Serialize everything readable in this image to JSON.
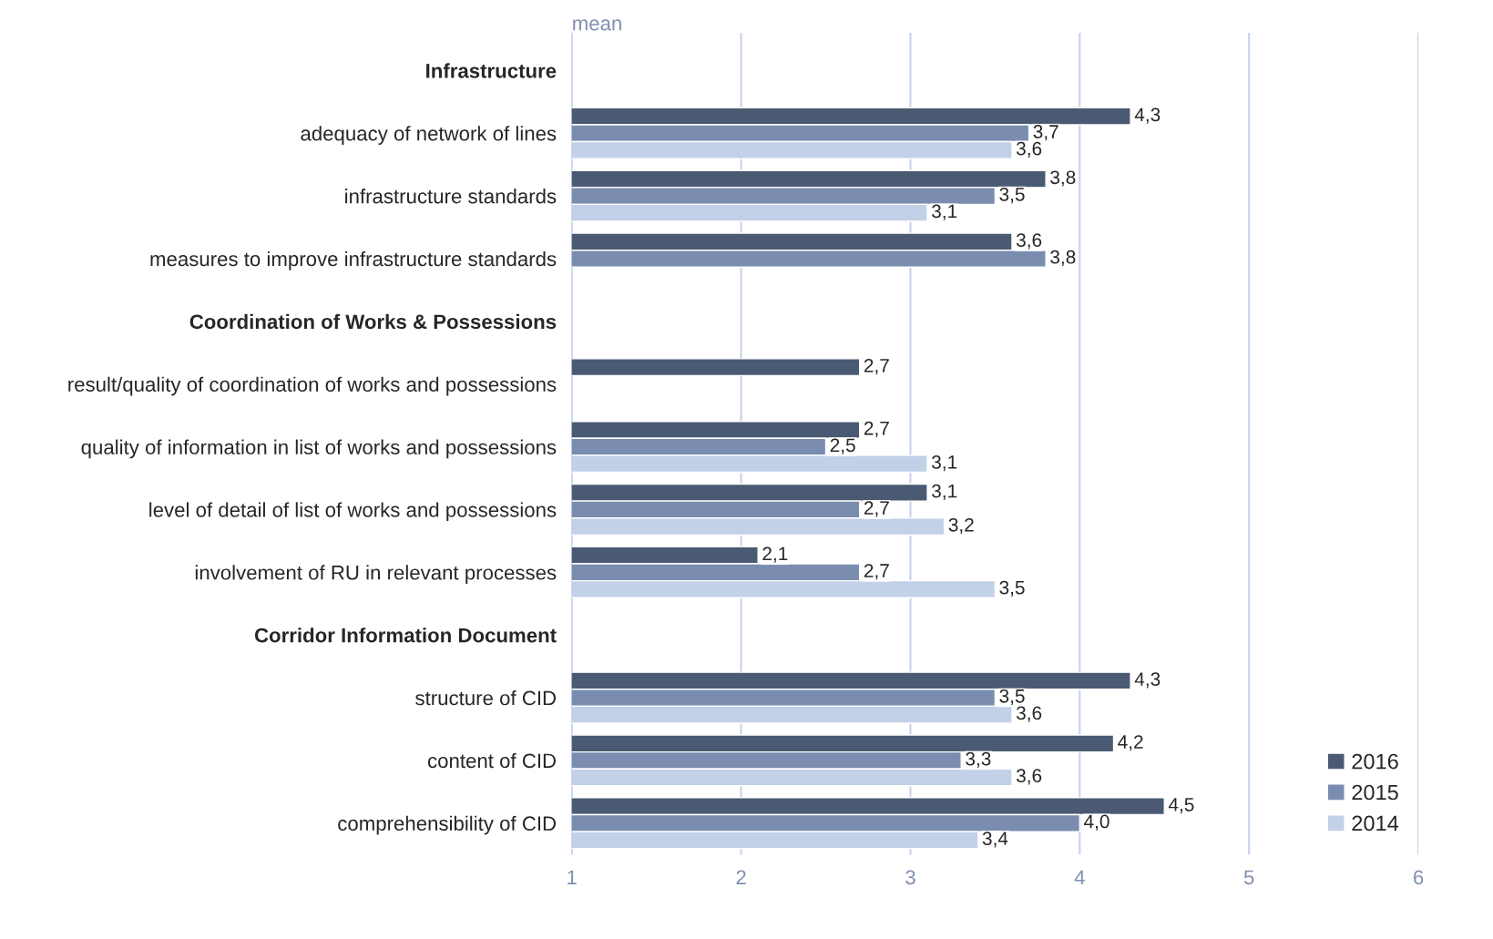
{
  "chart_data": {
    "type": "bar",
    "orientation": "horizontal",
    "xlabel": "mean",
    "categories": [
      "Infrastructure",
      "adequacy of network of lines",
      "infrastructure standards",
      "measures to improve infrastructure standards",
      "Coordination of Works & Possessions",
      "result/quality of coordination of works and possessions",
      "quality of information in list of works and possessions",
      "level of detail of list of works and possessions",
      "involvement of RU in relevant processes",
      "Corridor Information Document",
      "structure of CID",
      "content of CID",
      "comprehensibility of CID"
    ],
    "series": [
      {
        "name": "2016",
        "color": "#4a5a73",
        "values": [
          null,
          4.3,
          3.8,
          3.6,
          null,
          2.7,
          2.7,
          3.1,
          2.1,
          null,
          4.3,
          4.2,
          4.5
        ],
        "value_labels": [
          null,
          "4,3",
          "3,8",
          "3,6",
          null,
          "2,7",
          "2,7",
          "3,1",
          "2,1",
          null,
          "4,3",
          "4,2",
          "4,5"
        ]
      },
      {
        "name": "2015",
        "color": "#7a8db0",
        "values": [
          null,
          3.7,
          3.5,
          3.8,
          null,
          null,
          2.5,
          2.7,
          2.7,
          null,
          3.5,
          3.3,
          4.0
        ],
        "value_labels": [
          null,
          "3,7",
          "3,5",
          "3,8",
          null,
          null,
          "2,5",
          "2,7",
          "2,7",
          null,
          "3,5",
          "3,3",
          "4,0"
        ]
      },
      {
        "name": "2014",
        "color": "#c2d0e8",
        "values": [
          null,
          3.6,
          3.1,
          null,
          null,
          null,
          3.1,
          3.2,
          3.5,
          null,
          3.6,
          3.6,
          3.4
        ],
        "value_labels": [
          null,
          "3,6",
          "3,1",
          null,
          null,
          null,
          "3,1",
          "3,2",
          "3,5",
          null,
          "3,6",
          "3,6",
          "3,4"
        ]
      }
    ],
    "xlim": [
      1,
      6
    ],
    "xticks": [
      1,
      2,
      3,
      4,
      5,
      6
    ],
    "grid": "x",
    "legend": "bottom right"
  }
}
